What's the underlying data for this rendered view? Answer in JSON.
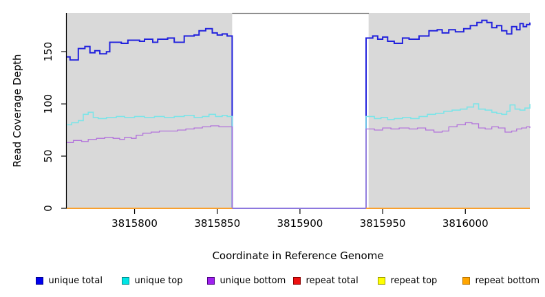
{
  "chart_data": {
    "type": "line",
    "step": true,
    "title": "",
    "xlabel": "Coordinate in Reference Genome",
    "ylabel": "Read Coverage Depth",
    "xlim": [
      3815759,
      3816039
    ],
    "ylim": [
      0,
      187
    ],
    "x_ticks": [
      3815800,
      3815850,
      3815900,
      3815950,
      3816000
    ],
    "y_ticks": [
      0,
      50,
      100,
      150
    ],
    "grid": false,
    "legend_position": "bottom",
    "panel_regions": [
      [
        3815759,
        3815859
      ],
      [
        3815941.5,
        3816039
      ]
    ],
    "coverage_gap": [
      3815859,
      3815940
    ],
    "series": [
      {
        "name": "unique total",
        "line_color": "#2222dd",
        "legend_fill": "#0000ee",
        "legend_border": "#00008b",
        "line_width": 2,
        "segments": [
          {
            "x": [
              3815759,
              3815761,
              3815766,
              3815770,
              3815773,
              3815776,
              3815779,
              3815783,
              3815785,
              3815792,
              3815796,
              3815803,
              3815806,
              3815811,
              3815814,
              3815820,
              3815824,
              3815830,
              3815836,
              3815839,
              3815843,
              3815847,
              3815850,
              3815853,
              3815856,
              3815859,
              3815940,
              3815944,
              3815947,
              3815950,
              3815953,
              3815957,
              3815962,
              3815966,
              3815972,
              3815978,
              3815983,
              3815986,
              3815990,
              3815994,
              3815999,
              3816003,
              3816007,
              3816010,
              3816013,
              3816016,
              3816019,
              3816022,
              3816025,
              3816028,
              3816031,
              3816033,
              3816035,
              3816037,
              3816039
            ],
            "v": [
              145,
              142,
              153,
              155,
              149,
              151,
              148,
              150,
              159,
              158,
              161,
              160,
              162,
              159,
              162,
              163,
              159,
              165,
              166,
              170,
              172,
              168,
              166,
              167,
              165,
              0,
              163,
              165,
              162,
              164,
              160,
              158,
              163,
              162,
              165,
              170,
              171,
              168,
              171,
              169,
              172,
              175,
              178,
              180,
              178,
              173,
              175,
              170,
              167,
              174,
              171,
              177,
              174,
              176,
              178
            ]
          }
        ]
      },
      {
        "name": "unique top",
        "line_color": "#7de4e8",
        "legend_fill": "#00e5e5",
        "legend_border": "#008b8b",
        "line_width": 1.6,
        "segments": [
          {
            "x": [
              3815759,
              3815762,
              3815766,
              3815769,
              3815772,
              3815775,
              3815778,
              3815783,
              3815789,
              3815794,
              3815800,
              3815806,
              3815812,
              3815818,
              3815824,
              3815830,
              3815836,
              3815841,
              3815845,
              3815849,
              3815853,
              3815856,
              3815859,
              3815940,
              3815945,
              3815949,
              3815953,
              3815957,
              3815962,
              3815967,
              3815972,
              3815977,
              3815982,
              3815987,
              3815992,
              3815997,
              3816001,
              3816005,
              3816008,
              3816012,
              3816016,
              3816019,
              3816022,
              3816025,
              3816027,
              3816030,
              3816033,
              3816036,
              3816039
            ],
            "v": [
              80,
              82,
              84,
              90,
              92,
              87,
              86,
              87,
              88,
              87,
              88,
              87,
              88,
              87,
              88,
              89,
              87,
              88,
              90,
              88,
              89,
              88,
              0,
              88,
              86,
              87,
              85,
              86,
              87,
              86,
              88,
              90,
              91,
              93,
              94,
              95,
              97,
              100,
              95,
              94,
              92,
              91,
              90,
              93,
              99,
              95,
              94,
              96,
              100
            ]
          }
        ]
      },
      {
        "name": "unique bottom",
        "line_color": "#b272db",
        "legend_fill": "#a020f0",
        "legend_border": "#4b0082",
        "line_width": 1.3,
        "segments": [
          {
            "x": [
              3815759,
              3815763,
              3815768,
              3815772,
              3815777,
              3815782,
              3815787,
              3815791,
              3815794,
              3815798,
              3815801,
              3815805,
              3815810,
              3815815,
              3815820,
              3815826,
              3815831,
              3815836,
              3815841,
              3815846,
              3815851,
              3815855,
              3815859,
              3815940,
              3815945,
              3815950,
              3815955,
              3815960,
              3815966,
              3815971,
              3815976,
              3815981,
              3815986,
              3815990,
              3815995,
              3816000,
              3816004,
              3816008,
              3816012,
              3816016,
              3816020,
              3816024,
              3816028,
              3816031,
              3816034,
              3816037,
              3816039
            ],
            "v": [
              63,
              65,
              64,
              66,
              67,
              68,
              67,
              66,
              68,
              67,
              70,
              72,
              73,
              74,
              74,
              75,
              76,
              77,
              78,
              79,
              78,
              78,
              0,
              76,
              75,
              77,
              76,
              77,
              76,
              77,
              75,
              73,
              74,
              78,
              80,
              82,
              81,
              77,
              76,
              78,
              77,
              73,
              74,
              76,
              77,
              78,
              77
            ]
          }
        ]
      },
      {
        "name": "repeat total",
        "line_color": "#ee1111",
        "legend_fill": "#ee1111",
        "legend_border": "#8b0000",
        "line_width": 1.4,
        "segments": [
          {
            "x": [
              3815759,
              3815859
            ],
            "v": [
              0,
              0
            ]
          },
          {
            "x": [
              3815940,
              3816039
            ],
            "v": [
              0,
              0
            ]
          }
        ]
      },
      {
        "name": "repeat top",
        "line_color": "#f7f700",
        "legend_fill": "#ffff00",
        "legend_border": "#9a9a00",
        "line_width": 1.4,
        "segments": [
          {
            "x": [
              3815759,
              3815859
            ],
            "v": [
              0,
              0
            ]
          },
          {
            "x": [
              3815940,
              3816039
            ],
            "v": [
              0,
              0
            ]
          }
        ]
      },
      {
        "name": "repeat bottom",
        "line_color": "#ffa333",
        "legend_fill": "#ffa500",
        "legend_border": "#b87300",
        "line_width": 1.8,
        "segments": [
          {
            "x": [
              3815759,
              3815859
            ],
            "v": [
              0,
              0
            ]
          },
          {
            "x": [
              3815940,
              3816039
            ],
            "v": [
              0,
              0
            ]
          }
        ]
      }
    ]
  },
  "colors": {
    "page_background": "#ffffff",
    "panel_background": "#d9d9d9",
    "axis": "#000000",
    "gap_top_border": "#808080"
  }
}
